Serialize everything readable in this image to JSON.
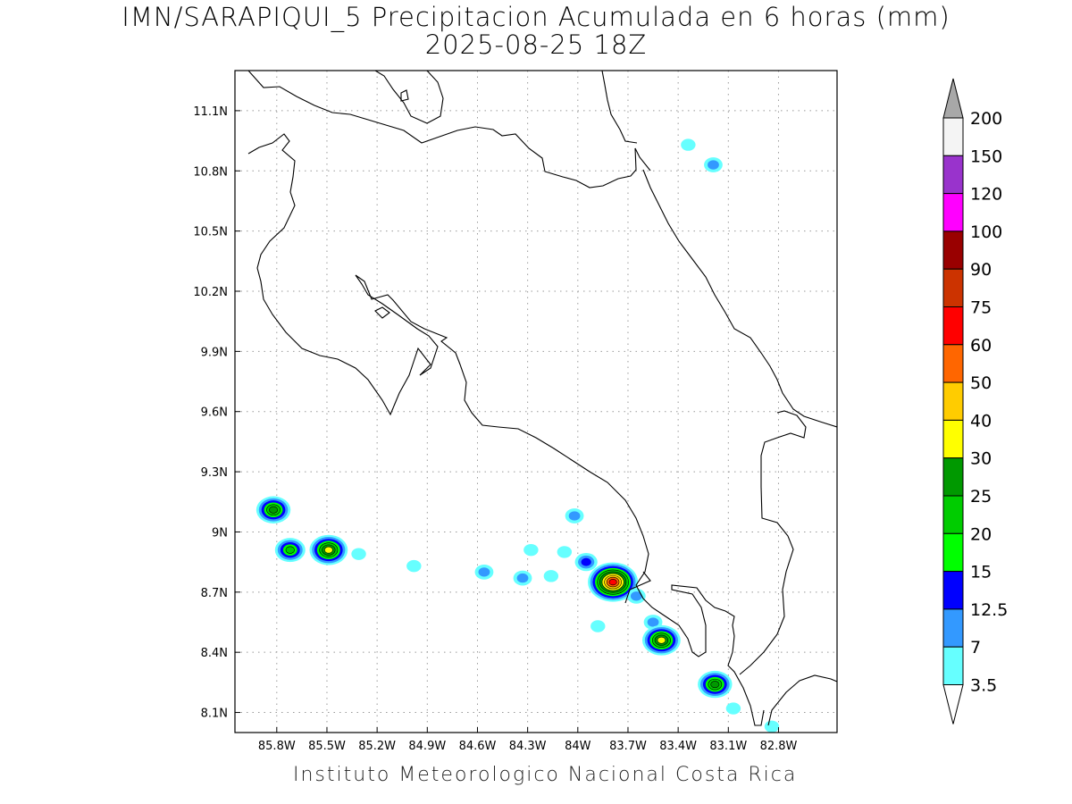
{
  "title": {
    "line1": "IMN/SARAPIQUI_5 Precipitacion Acumulada en 6 horas (mm)",
    "line2": "2025-08-25 18Z"
  },
  "footer": "Instituto Meteorologico Nacional Costa Rica",
  "map": {
    "lon_range": [
      -86.05,
      -82.45
    ],
    "lat_range": [
      8.0,
      11.3
    ],
    "x_ticks": [
      {
        "value": -85.8,
        "label": "85.8W"
      },
      {
        "value": -85.5,
        "label": "85.5W"
      },
      {
        "value": -85.2,
        "label": "85.2W"
      },
      {
        "value": -84.9,
        "label": "84.9W"
      },
      {
        "value": -84.6,
        "label": "84.6W"
      },
      {
        "value": -84.3,
        "label": "84.3W"
      },
      {
        "value": -84.0,
        "label": "84W"
      },
      {
        "value": -83.7,
        "label": "83.7W"
      },
      {
        "value": -83.4,
        "label": "83.4W"
      },
      {
        "value": -83.1,
        "label": "83.1W"
      },
      {
        "value": -82.8,
        "label": "82.8W"
      }
    ],
    "y_ticks": [
      {
        "value": 11.1,
        "label": "11.1N"
      },
      {
        "value": 10.8,
        "label": "10.8N"
      },
      {
        "value": 10.5,
        "label": "10.5N"
      },
      {
        "value": 10.2,
        "label": "10.2N"
      },
      {
        "value": 9.9,
        "label": "9.9N"
      },
      {
        "value": 9.6,
        "label": "9.6N"
      },
      {
        "value": 9.3,
        "label": "9.3N"
      },
      {
        "value": 9.0,
        "label": "9N"
      },
      {
        "value": 8.7,
        "label": "8.7N"
      },
      {
        "value": 8.4,
        "label": "8.4N"
      },
      {
        "value": 8.1,
        "label": "8.1N"
      }
    ],
    "grid": "dotted"
  },
  "colorbar": {
    "levels": [
      {
        "label": "200",
        "color": "#a8a8a8"
      },
      {
        "label": "150",
        "color": "#f4f4f4"
      },
      {
        "label": "120",
        "color": "#9933cc"
      },
      {
        "label": "100",
        "color": "#ff00ff"
      },
      {
        "label": "90",
        "color": "#990000"
      },
      {
        "label": "75",
        "color": "#cc3300"
      },
      {
        "label": "60",
        "color": "#ff0000"
      },
      {
        "label": "50",
        "color": "#ff6600"
      },
      {
        "label": "40",
        "color": "#ffcc00"
      },
      {
        "label": "30",
        "color": "#ffff00"
      },
      {
        "label": "25",
        "color": "#009900"
      },
      {
        "label": "20",
        "color": "#00cc00"
      },
      {
        "label": "15",
        "color": "#00ff00"
      },
      {
        "label": "12.5",
        "color": "#0000ff"
      },
      {
        "label": "7",
        "color": "#3399ff"
      },
      {
        "label": "3.5",
        "color": "#66ffff"
      }
    ],
    "bottom_arrow_color": "#ffffff"
  },
  "rain_cells": [
    {
      "lon": -85.82,
      "lat": 9.11,
      "level": "25"
    },
    {
      "lon": -85.72,
      "lat": 8.91,
      "level": "20"
    },
    {
      "lon": -85.49,
      "lat": 8.91,
      "level": "30"
    },
    {
      "lon": -85.31,
      "lat": 8.89,
      "level": "3.5"
    },
    {
      "lon": -84.98,
      "lat": 8.83,
      "level": "3.5"
    },
    {
      "lon": -84.56,
      "lat": 8.8,
      "level": "7"
    },
    {
      "lon": -84.33,
      "lat": 8.77,
      "level": "7"
    },
    {
      "lon": -84.16,
      "lat": 8.78,
      "level": "3.5"
    },
    {
      "lon": -84.02,
      "lat": 9.08,
      "level": "7"
    },
    {
      "lon": -84.28,
      "lat": 8.91,
      "level": "3.5"
    },
    {
      "lon": -84.08,
      "lat": 8.9,
      "level": "3.5"
    },
    {
      "lon": -83.95,
      "lat": 8.85,
      "level": "12.5"
    },
    {
      "lon": -83.79,
      "lat": 8.75,
      "level": "60"
    },
    {
      "lon": -83.65,
      "lat": 8.68,
      "level": "7"
    },
    {
      "lon": -83.55,
      "lat": 8.55,
      "level": "7"
    },
    {
      "lon": -83.5,
      "lat": 8.46,
      "level": "30"
    },
    {
      "lon": -83.18,
      "lat": 8.24,
      "level": "25"
    },
    {
      "lon": -83.07,
      "lat": 8.12,
      "level": "3.5"
    },
    {
      "lon": -82.84,
      "lat": 8.03,
      "level": "3.5"
    },
    {
      "lon": -83.34,
      "lat": 10.93,
      "level": "3.5"
    },
    {
      "lon": -83.19,
      "lat": 10.83,
      "level": "7"
    },
    {
      "lon": -83.88,
      "lat": 8.53,
      "level": "3.5"
    }
  ]
}
